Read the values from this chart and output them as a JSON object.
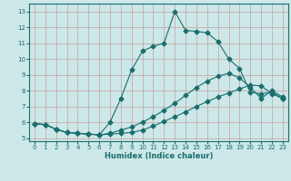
{
  "xlabel": "Humidex (Indice chaleur)",
  "bg_color": "#cce8e8",
  "grid_color": "#c8a0a0",
  "line_color": "#1a6e6e",
  "xlim": [
    -0.5,
    23.5
  ],
  "ylim": [
    4.8,
    13.5
  ],
  "xticks": [
    0,
    1,
    2,
    3,
    4,
    5,
    6,
    7,
    8,
    9,
    10,
    11,
    12,
    13,
    14,
    15,
    16,
    17,
    18,
    19,
    20,
    21,
    22,
    23
  ],
  "yticks": [
    5,
    6,
    7,
    8,
    9,
    10,
    11,
    12,
    13
  ],
  "line1_x": [
    0,
    1,
    2,
    3,
    4,
    5,
    6,
    7,
    8,
    9,
    10,
    11,
    12,
    13,
    14,
    15,
    16,
    17,
    18,
    19,
    20,
    21,
    22,
    23
  ],
  "line1_y": [
    5.9,
    5.85,
    5.55,
    5.35,
    5.3,
    5.25,
    5.2,
    5.25,
    5.3,
    5.35,
    5.5,
    5.75,
    6.05,
    6.35,
    6.65,
    7.0,
    7.3,
    7.6,
    7.85,
    8.1,
    8.35,
    8.3,
    7.8,
    7.5
  ],
  "line2_x": [
    0,
    1,
    2,
    3,
    4,
    5,
    6,
    7,
    8,
    9,
    10,
    11,
    12,
    13,
    14,
    15,
    16,
    17,
    18,
    19,
    20,
    21,
    22,
    23
  ],
  "line2_y": [
    5.9,
    5.85,
    5.55,
    5.35,
    5.3,
    5.25,
    5.2,
    5.3,
    5.5,
    5.7,
    6.0,
    6.35,
    6.75,
    7.2,
    7.7,
    8.2,
    8.6,
    8.9,
    9.1,
    8.8,
    8.2,
    7.5,
    8.0,
    7.6
  ],
  "line3_x": [
    0,
    1,
    2,
    3,
    4,
    5,
    6,
    7,
    8,
    9,
    10,
    11,
    12,
    13,
    14,
    15,
    16,
    17,
    18,
    19,
    20,
    21,
    22,
    23
  ],
  "line3_y": [
    5.9,
    5.85,
    5.55,
    5.35,
    5.3,
    5.25,
    5.2,
    6.0,
    7.5,
    9.3,
    10.5,
    10.8,
    11.0,
    13.0,
    11.8,
    11.75,
    11.65,
    11.1,
    10.0,
    9.4,
    7.9,
    7.8,
    7.9,
    7.5
  ]
}
